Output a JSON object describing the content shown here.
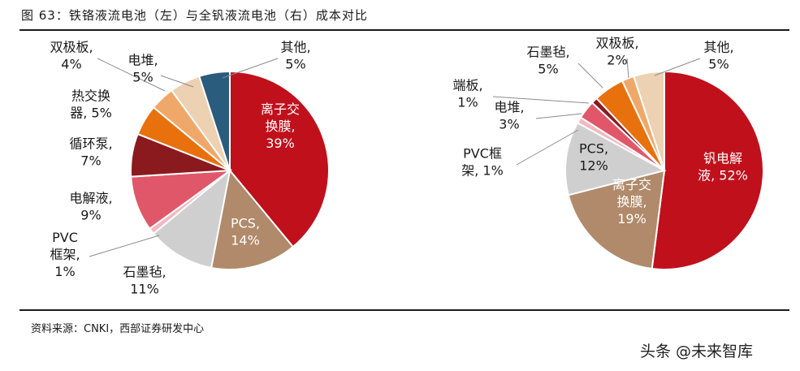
{
  "figure": {
    "title": "图 63：铁铬液流电池（左）与全钒液流电池（右）成本对比",
    "source": "资料来源：CNKI，西部证券研发中心",
    "watermark": "头条 @未来智库"
  },
  "chart_data": [
    {
      "type": "pie",
      "slices": [
        {
          "label": [
            "离子交",
            "换膜,",
            "39%"
          ],
          "value": 39,
          "color": "#c0101c"
        },
        {
          "label": [
            "PCS,",
            "14%"
          ],
          "value": 14,
          "color": "#b08a6a"
        },
        {
          "label": [
            "石墨毡,",
            "11%"
          ],
          "value": 11,
          "color": "#cfcfcf"
        },
        {
          "label": [
            "PVC",
            "框架,",
            "1%"
          ],
          "value": 1,
          "color": "#f4b8c0"
        },
        {
          "label": [
            "电解液,",
            "9%"
          ],
          "value": 9,
          "color": "#e0576a"
        },
        {
          "label": [
            "循环泵,",
            "7%"
          ],
          "value": 7,
          "color": "#8b1a1f"
        },
        {
          "label": [
            "热交换",
            "器, 5%"
          ],
          "value": 5,
          "color": "#e8710e"
        },
        {
          "label": [
            "双极板,",
            "4%"
          ],
          "value": 4,
          "color": "#f0a86a"
        },
        {
          "label": [
            "电堆,",
            "5%"
          ],
          "value": 5,
          "color": "#ecd1b2"
        },
        {
          "label": [
            "其他,",
            "5%"
          ],
          "value": 5,
          "color": "#2a5c7e"
        }
      ]
    },
    {
      "type": "pie",
      "slices": [
        {
          "label": [
            "钒电解",
            "液, 52%"
          ],
          "value": 52,
          "color": "#c0101c"
        },
        {
          "label": [
            "离子交",
            "换膜,",
            "19%"
          ],
          "value": 19,
          "color": "#b08a6a"
        },
        {
          "label": [
            "PCS,",
            "12%"
          ],
          "value": 12,
          "color": "#cfcfcf"
        },
        {
          "label": [
            "PVC框",
            "架, 1%"
          ],
          "value": 1,
          "color": "#f4b8c0"
        },
        {
          "label": [
            "电堆,",
            "3%"
          ],
          "value": 3,
          "color": "#e0576a"
        },
        {
          "label": [
            "端板,",
            "1%"
          ],
          "value": 1,
          "color": "#8b1a1f"
        },
        {
          "label": [
            "石墨毡,",
            "5%"
          ],
          "value": 5,
          "color": "#e8710e"
        },
        {
          "label": [
            "双极板,",
            "2%"
          ],
          "value": 2,
          "color": "#f0a86a"
        },
        {
          "label": [
            "其他,",
            "5%"
          ],
          "value": 5,
          "color": "#ecd1b2"
        }
      ]
    }
  ]
}
